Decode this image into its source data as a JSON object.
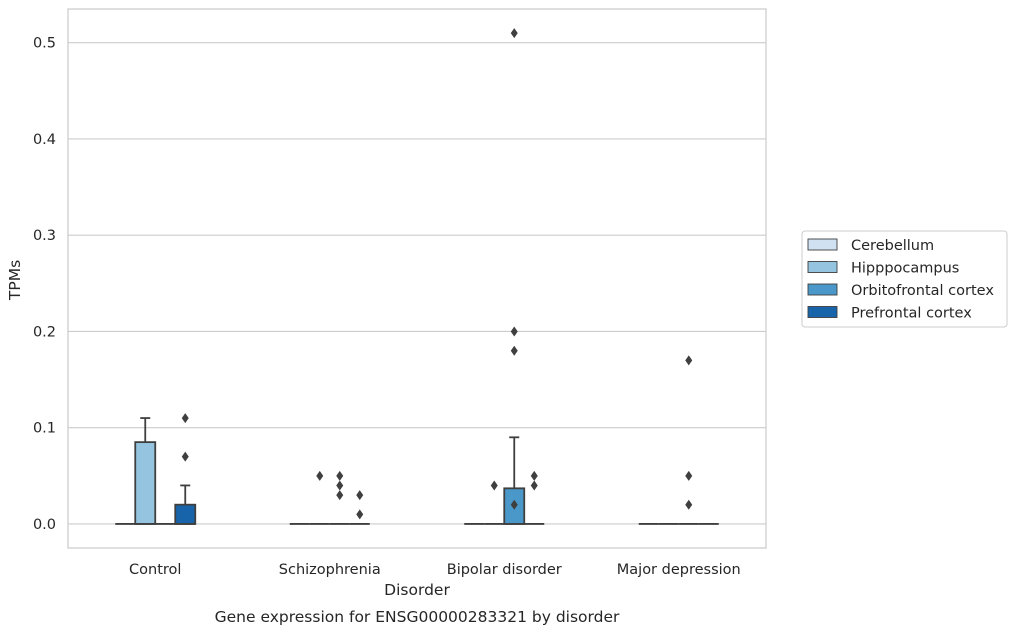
{
  "chart_data": {
    "type": "box",
    "title": "Gene expression for ENSG00000283321 by disorder",
    "xlabel": "Disorder",
    "ylabel": "TPMs",
    "categories": [
      "Control",
      "Schizophrenia",
      "Bipolar disorder",
      "Major depression"
    ],
    "ylim": [
      -0.025,
      0.535
    ],
    "yticks": [
      "0.0",
      "0.1",
      "0.2",
      "0.3",
      "0.4",
      "0.5"
    ],
    "ytick_values": [
      0.0,
      0.1,
      0.2,
      0.3,
      0.4,
      0.5
    ],
    "grid": true,
    "legend_position": "right",
    "series": [
      {
        "name": "Cerebellum",
        "color": "#d0e1f2",
        "boxes": [
          {
            "q1": 0,
            "median": 0,
            "q3": 0,
            "whisker_low": 0,
            "whisker_high": 0,
            "outliers": []
          },
          {
            "q1": 0,
            "median": 0,
            "q3": 0,
            "whisker_low": 0,
            "whisker_high": 0,
            "outliers": []
          },
          {
            "q1": 0,
            "median": 0,
            "q3": 0,
            "whisker_low": 0,
            "whisker_high": 0,
            "outliers": []
          },
          {
            "q1": 0,
            "median": 0,
            "q3": 0,
            "whisker_low": 0,
            "whisker_high": 0,
            "outliers": []
          }
        ]
      },
      {
        "name": "Hipppocampus",
        "color": "#94c4df",
        "boxes": [
          {
            "q1": 0,
            "median": 0,
            "q3": 0.085,
            "whisker_low": 0,
            "whisker_high": 0.11,
            "outliers": []
          },
          {
            "q1": 0,
            "median": 0,
            "q3": 0,
            "whisker_low": 0,
            "whisker_high": 0,
            "outliers": [
              0.05
            ]
          },
          {
            "q1": 0,
            "median": 0,
            "q3": 0,
            "whisker_low": 0,
            "whisker_high": 0,
            "outliers": [
              0.04
            ]
          },
          {
            "q1": 0,
            "median": 0,
            "q3": 0,
            "whisker_low": 0,
            "whisker_high": 0,
            "outliers": []
          }
        ]
      },
      {
        "name": "Orbitofrontal cortex",
        "color": "#4a98c9",
        "boxes": [
          {
            "q1": 0,
            "median": 0,
            "q3": 0,
            "whisker_low": 0,
            "whisker_high": 0,
            "outliers": []
          },
          {
            "q1": 0,
            "median": 0,
            "q3": 0,
            "whisker_low": 0,
            "whisker_high": 0,
            "outliers": [
              0.05,
              0.04,
              0.03
            ]
          },
          {
            "q1": 0,
            "median": 0,
            "q3": 0.037,
            "whisker_low": 0,
            "whisker_high": 0.09,
            "outliers": [
              0.51,
              0.2,
              0.18,
              0.02
            ]
          },
          {
            "q1": 0,
            "median": 0,
            "q3": 0,
            "whisker_low": 0,
            "whisker_high": 0,
            "outliers": [
              0.17,
              0.05,
              0.02
            ]
          }
        ]
      },
      {
        "name": "Prefrontal cortex",
        "color": "#1764ab",
        "boxes": [
          {
            "q1": 0,
            "median": 0,
            "q3": 0.02,
            "whisker_low": 0,
            "whisker_high": 0.04,
            "outliers": [
              0.11,
              0.07
            ]
          },
          {
            "q1": 0,
            "median": 0,
            "q3": 0,
            "whisker_low": 0,
            "whisker_high": 0,
            "outliers": [
              0.03,
              0.01
            ]
          },
          {
            "q1": 0,
            "median": 0,
            "q3": 0,
            "whisker_low": 0,
            "whisker_high": 0,
            "outliers": [
              0.05,
              0.04
            ]
          },
          {
            "q1": 0,
            "median": 0,
            "q3": 0,
            "whisker_low": 0,
            "whisker_high": 0,
            "outliers": []
          }
        ]
      }
    ]
  }
}
